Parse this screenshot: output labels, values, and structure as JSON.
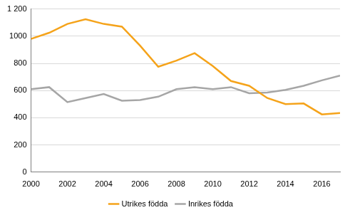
{
  "chart_data": {
    "type": "line",
    "x": [
      2000,
      2001,
      2002,
      2003,
      2004,
      2005,
      2006,
      2007,
      2008,
      2009,
      2010,
      2011,
      2012,
      2013,
      2014,
      2015,
      2016,
      2017
    ],
    "series": [
      {
        "name": "Utrikes födda",
        "color": "#f5a31a",
        "values": [
          980,
          1025,
          1090,
          1125,
          1090,
          1070,
          930,
          775,
          820,
          875,
          780,
          670,
          635,
          545,
          500,
          505,
          425,
          435
        ]
      },
      {
        "name": "Inrikes födda",
        "color": "#a6a6a6",
        "values": [
          610,
          625,
          515,
          545,
          575,
          525,
          530,
          555,
          610,
          625,
          610,
          625,
          580,
          585,
          605,
          635,
          675,
          710
        ]
      }
    ],
    "xlim": [
      2000,
      2017
    ],
    "xticks": [
      2000,
      2002,
      2004,
      2006,
      2008,
      2010,
      2012,
      2014,
      2016
    ],
    "ylim": [
      0,
      1200
    ],
    "yticks": [
      0,
      200,
      400,
      600,
      800,
      1000,
      {
        "value": 1200,
        "label": "1 200"
      }
    ],
    "grid": true,
    "legend": "bottom"
  }
}
